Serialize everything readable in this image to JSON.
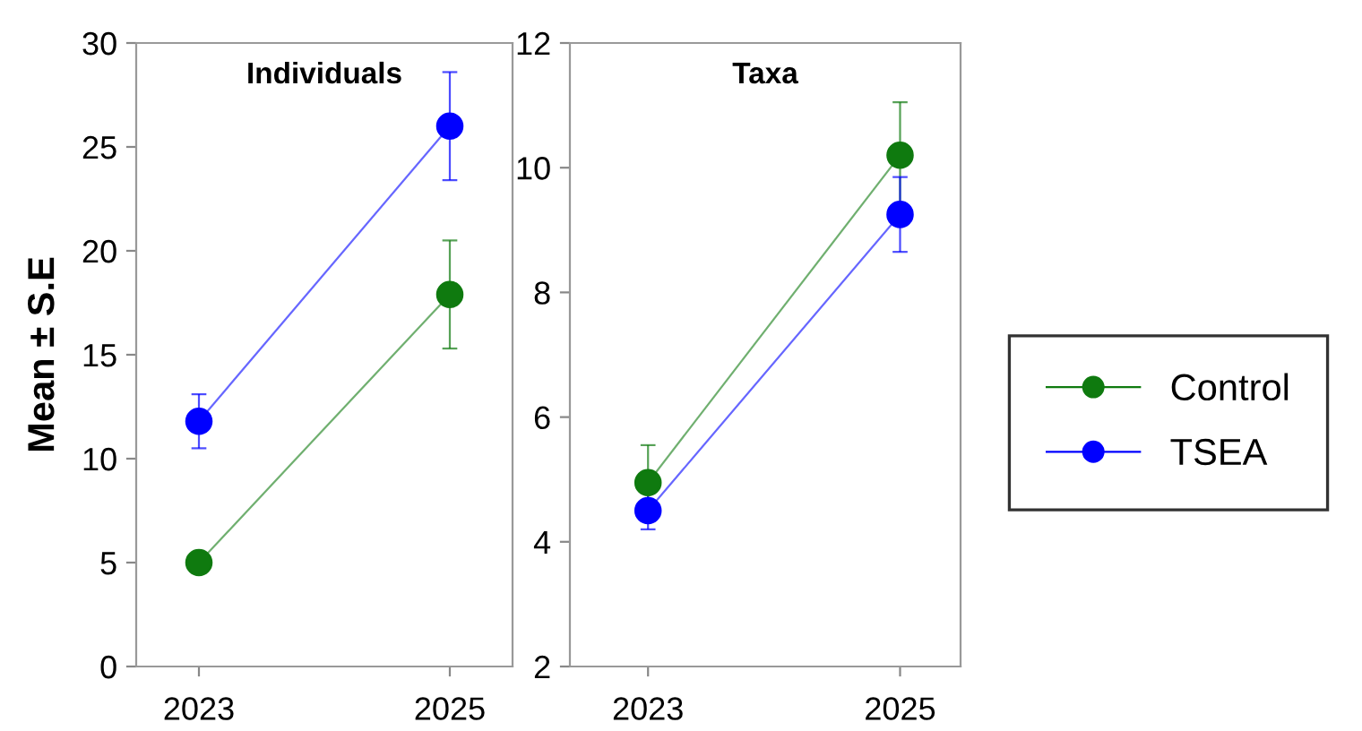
{
  "chart_data": [
    {
      "type": "line",
      "title": "Individuals",
      "ylabel": "Mean ± S.E",
      "categories": [
        "2023",
        "2025"
      ],
      "ylim": [
        0,
        30
      ],
      "yticks": [
        0,
        5,
        10,
        15,
        20,
        25,
        30
      ],
      "grid": false,
      "marker": "circle",
      "line_style": "solid",
      "legend": "right",
      "series": [
        {
          "name": "Control",
          "color": "#0f7a0f",
          "values": [
            5.0,
            17.9
          ],
          "errors": [
            0.3,
            2.6
          ]
        },
        {
          "name": "TSEA",
          "color": "#0000ff",
          "values": [
            11.8,
            26.0
          ],
          "errors": [
            1.3,
            2.6
          ]
        }
      ]
    },
    {
      "type": "line",
      "title": "Taxa",
      "categories": [
        "2023",
        "2025"
      ],
      "ylim": [
        2,
        12
      ],
      "yticks": [
        2,
        4,
        6,
        8,
        10,
        12
      ],
      "grid": false,
      "marker": "circle",
      "line_style": "solid",
      "series": [
        {
          "color": "#0f7a0f",
          "values": [
            4.95,
            10.2
          ],
          "errors": [
            0.6,
            0.85
          ]
        },
        {
          "color": "#0000ff",
          "values": [
            4.5,
            9.25
          ],
          "errors": [
            0.3,
            0.6
          ]
        }
      ]
    }
  ]
}
